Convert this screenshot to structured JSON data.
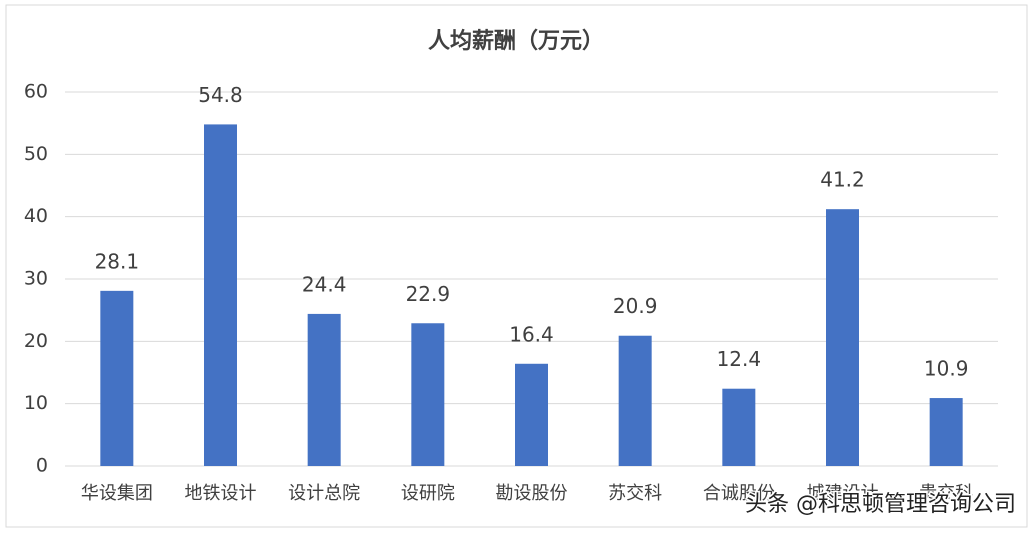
{
  "chart_data": {
    "type": "bar",
    "title": "人均薪酬（万元）",
    "categories": [
      "华设集团",
      "地铁设计",
      "设计总院",
      "设研院",
      "勘设股份",
      "苏交科",
      "合诚股份",
      "城建设计",
      "贵交科"
    ],
    "values": [
      28.1,
      54.8,
      24.4,
      22.9,
      16.4,
      20.9,
      12.4,
      41.2,
      10.9
    ],
    "color": "#4472c4",
    "ylim": [
      0,
      60
    ],
    "yticks": [
      0,
      10,
      20,
      30,
      40,
      50,
      60
    ],
    "grid": true
  },
  "watermark": "头条 @科思顿管理咨询公司"
}
